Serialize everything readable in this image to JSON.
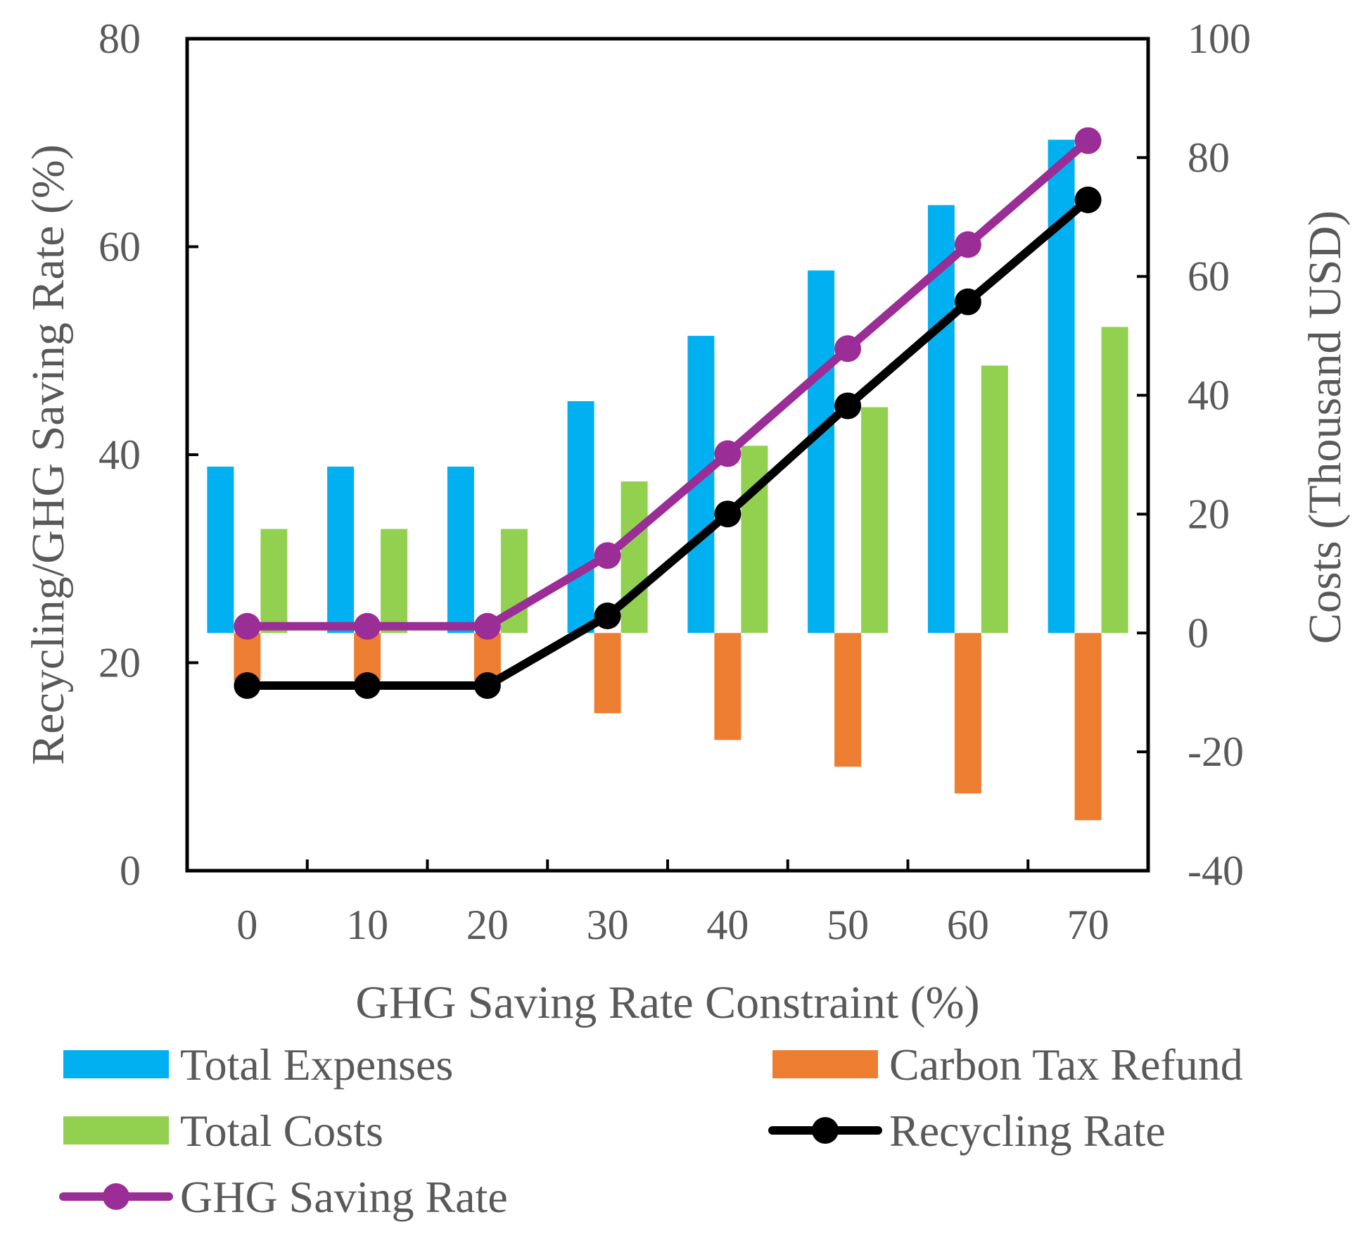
{
  "chart_data": {
    "type": "bar",
    "categories": [
      "0",
      "10",
      "20",
      "30",
      "40",
      "50",
      "60",
      "70"
    ],
    "xlabel": "GHG Saving Rate Constraint (%)",
    "ylabel_left": "Recycling/GHG Saving Rate (%)",
    "ylabel_right": "Costs (Thousand USD)",
    "ylim_left": [
      0,
      80
    ],
    "ylim_right": [
      -40,
      100
    ],
    "yticks_left": [
      "0",
      "20",
      "40",
      "60",
      "80"
    ],
    "yticks_right": [
      "-40",
      "-20",
      "0",
      "20",
      "40",
      "60",
      "80",
      "100"
    ],
    "grid": false,
    "legend_position": "bottom",
    "bar_series": [
      {
        "name": "Total Expenses",
        "axis": "right",
        "color": "#00b0f0",
        "values": [
          28,
          28,
          28,
          39,
          50,
          61,
          72,
          83
        ]
      },
      {
        "name": "Carbon Tax Refund",
        "axis": "right",
        "color": "#ed7d31",
        "values": [
          -8,
          -8,
          -8,
          -13.5,
          -18,
          -22.5,
          -27,
          -31.5
        ]
      },
      {
        "name": "Total Costs",
        "axis": "right",
        "color": "#92d050",
        "values": [
          17.5,
          17.5,
          17.5,
          25.5,
          31.5,
          38,
          45,
          51.5
        ]
      }
    ],
    "line_series": [
      {
        "name": "Recycling Rate",
        "axis": "left",
        "color": "#000000",
        "values": [
          17.8,
          17.8,
          17.8,
          24.5,
          34.3,
          44.7,
          54.7,
          64.5
        ]
      },
      {
        "name": "GHG Saving Rate",
        "axis": "left",
        "color": "#9b2d96",
        "values": [
          23.5,
          23.5,
          23.5,
          30.3,
          40.1,
          50.2,
          60.2,
          70.2
        ]
      }
    ],
    "legend": [
      {
        "label": "Total Expenses",
        "kind": "bar",
        "color": "#00b0f0"
      },
      {
        "label": "Carbon Tax Refund",
        "kind": "bar",
        "color": "#ed7d31"
      },
      {
        "label": "Total Costs",
        "kind": "bar",
        "color": "#92d050"
      },
      {
        "label": "Recycling Rate",
        "kind": "line",
        "color": "#000000"
      },
      {
        "label": "GHG Saving Rate",
        "kind": "line",
        "color": "#9b2d96"
      }
    ]
  }
}
